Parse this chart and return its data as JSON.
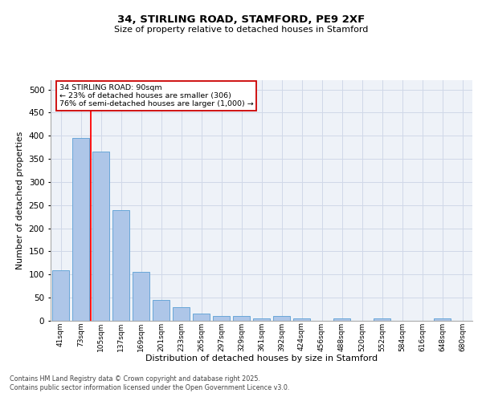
{
  "title_line1": "34, STIRLING ROAD, STAMFORD, PE9 2XF",
  "title_line2": "Size of property relative to detached houses in Stamford",
  "xlabel": "Distribution of detached houses by size in Stamford",
  "ylabel": "Number of detached properties",
  "categories": [
    "41sqm",
    "73sqm",
    "105sqm",
    "137sqm",
    "169sqm",
    "201sqm",
    "233sqm",
    "265sqm",
    "297sqm",
    "329sqm",
    "361sqm",
    "392sqm",
    "424sqm",
    "456sqm",
    "488sqm",
    "520sqm",
    "552sqm",
    "584sqm",
    "616sqm",
    "648sqm",
    "680sqm"
  ],
  "values": [
    110,
    395,
    365,
    240,
    105,
    45,
    30,
    15,
    10,
    10,
    5,
    10,
    5,
    0,
    5,
    0,
    5,
    0,
    0,
    5,
    0
  ],
  "bar_color": "#aec6e8",
  "bar_edge_color": "#5a9fd4",
  "red_line_x": 1.5,
  "annotation_text": "34 STIRLING ROAD: 90sqm\n← 23% of detached houses are smaller (306)\n76% of semi-detached houses are larger (1,000) →",
  "annotation_box_color": "#ffffff",
  "annotation_box_edge": "#cc0000",
  "grid_color": "#d0d8e8",
  "background_color": "#eef2f8",
  "footer_line1": "Contains HM Land Registry data © Crown copyright and database right 2025.",
  "footer_line2": "Contains public sector information licensed under the Open Government Licence v3.0.",
  "ylim": [
    0,
    520
  ],
  "yticks": [
    0,
    50,
    100,
    150,
    200,
    250,
    300,
    350,
    400,
    450,
    500
  ]
}
